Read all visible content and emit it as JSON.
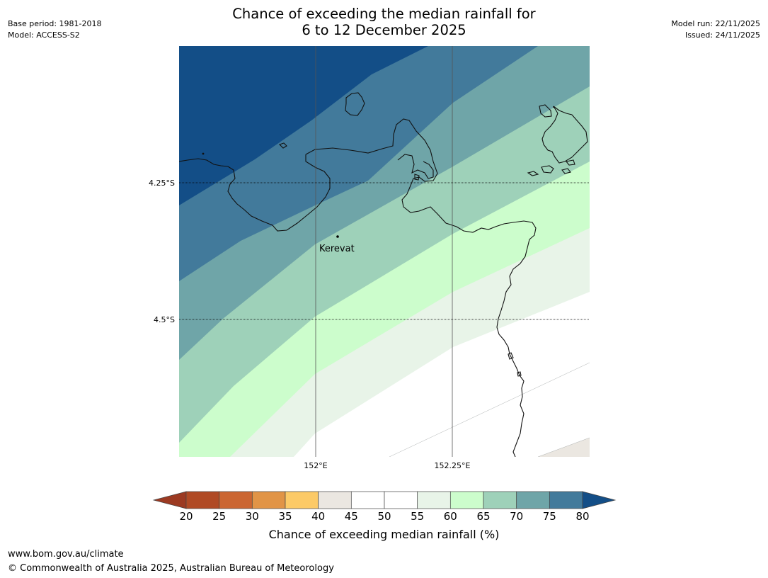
{
  "title": {
    "line1": "Chance of exceeding the median rainfall for",
    "line2": "6 to 12 December 2025"
  },
  "meta_left": {
    "base_period": "Base period: 1981-2018",
    "model": "Model: ACCESS-S2"
  },
  "meta_right": {
    "model_run": "Model run: 22/11/2025",
    "issued": "Issued: 24/11/2025"
  },
  "map": {
    "place_label": "Kerevat",
    "lat_labels": [
      "4.25°S",
      "4.5°S"
    ],
    "lon_labels": [
      "152°E",
      "152.25°E"
    ]
  },
  "colorbar": {
    "label": "Chance of exceeding median rainfall (%)",
    "ticks": [
      "20",
      "25",
      "30",
      "35",
      "40",
      "45",
      "50",
      "55",
      "60",
      "65",
      "70",
      "75",
      "80"
    ],
    "colors": {
      "below_20": "#9c3a22",
      "20_25": "#b04a25",
      "25_30": "#cb6632",
      "30_35": "#e19446",
      "35_40": "#fcca67",
      "40_45": "#ebe7e1",
      "45_50": "#ffffff",
      "50_55": "#ffffff",
      "55_60": "#e8f4e8",
      "60_65": "#ccfdcc",
      "65_70": "#9ed1b9",
      "70_75": "#6fa5a8",
      "75_80": "#427a9b",
      "above_80": "#134e87"
    }
  },
  "footer": {
    "url": "www.bom.gov.au/climate",
    "copyright": "© Commonwealth of Australia 2025, Australian Bureau of Meteorology"
  }
}
